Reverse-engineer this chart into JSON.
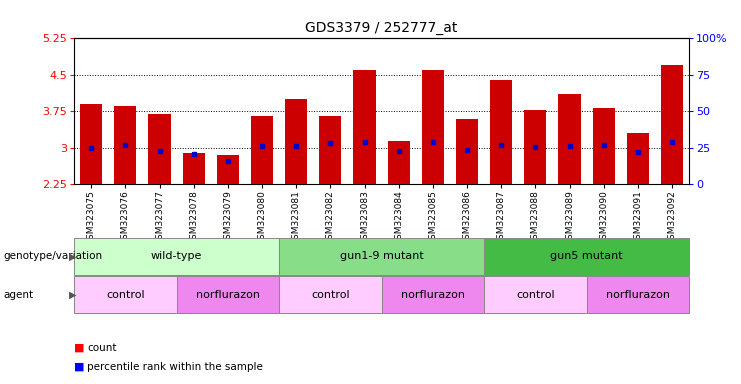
{
  "title": "GDS3379 / 252777_at",
  "samples": [
    "GSM323075",
    "GSM323076",
    "GSM323077",
    "GSM323078",
    "GSM323079",
    "GSM323080",
    "GSM323081",
    "GSM323082",
    "GSM323083",
    "GSM323084",
    "GSM323085",
    "GSM323086",
    "GSM323087",
    "GSM323088",
    "GSM323089",
    "GSM323090",
    "GSM323091",
    "GSM323092"
  ],
  "bar_values": [
    3.9,
    3.85,
    3.7,
    2.9,
    2.85,
    3.65,
    4.0,
    3.65,
    4.6,
    3.15,
    4.6,
    3.6,
    4.4,
    3.78,
    4.1,
    3.82,
    3.3,
    4.7
  ],
  "percentile_values": [
    3.0,
    3.05,
    2.93,
    2.87,
    2.73,
    3.03,
    3.03,
    3.1,
    3.12,
    2.93,
    3.12,
    2.95,
    3.05,
    3.02,
    3.03,
    3.05,
    2.92,
    3.12
  ],
  "ylim": [
    2.25,
    5.25
  ],
  "yticks": [
    2.25,
    3.0,
    3.75,
    4.5,
    5.25
  ],
  "ytick_labels": [
    "2.25",
    "3",
    "3.75",
    "4.5",
    "5.25"
  ],
  "right_yticks": [
    0,
    25,
    50,
    75,
    100
  ],
  "right_ytick_labels": [
    "0",
    "25",
    "50",
    "75",
    "100%"
  ],
  "bar_color": "#cc0000",
  "percentile_color": "#0000cc",
  "bar_baseline": 2.25,
  "genotype_groups": [
    {
      "label": "wild-type",
      "start": 0,
      "end": 6,
      "color": "#ccffcc"
    },
    {
      "label": "gun1-9 mutant",
      "start": 6,
      "end": 12,
      "color": "#88dd88"
    },
    {
      "label": "gun5 mutant",
      "start": 12,
      "end": 18,
      "color": "#44bb44"
    }
  ],
  "agent_groups": [
    {
      "label": "control",
      "start": 0,
      "end": 3,
      "color": "#ffccff"
    },
    {
      "label": "norflurazon",
      "start": 3,
      "end": 6,
      "color": "#ee88ee"
    },
    {
      "label": "control",
      "start": 6,
      "end": 9,
      "color": "#ffccff"
    },
    {
      "label": "norflurazon",
      "start": 9,
      "end": 12,
      "color": "#ee88ee"
    },
    {
      "label": "control",
      "start": 12,
      "end": 15,
      "color": "#ffccff"
    },
    {
      "label": "norflurazon",
      "start": 15,
      "end": 18,
      "color": "#ee88ee"
    }
  ],
  "row_label_genotype": "genotype/variation",
  "row_label_agent": "agent",
  "legend_count_label": "count",
  "legend_percentile_label": "percentile rank within the sample",
  "background_color": "#ffffff",
  "plot_bg_color": "#ffffff"
}
